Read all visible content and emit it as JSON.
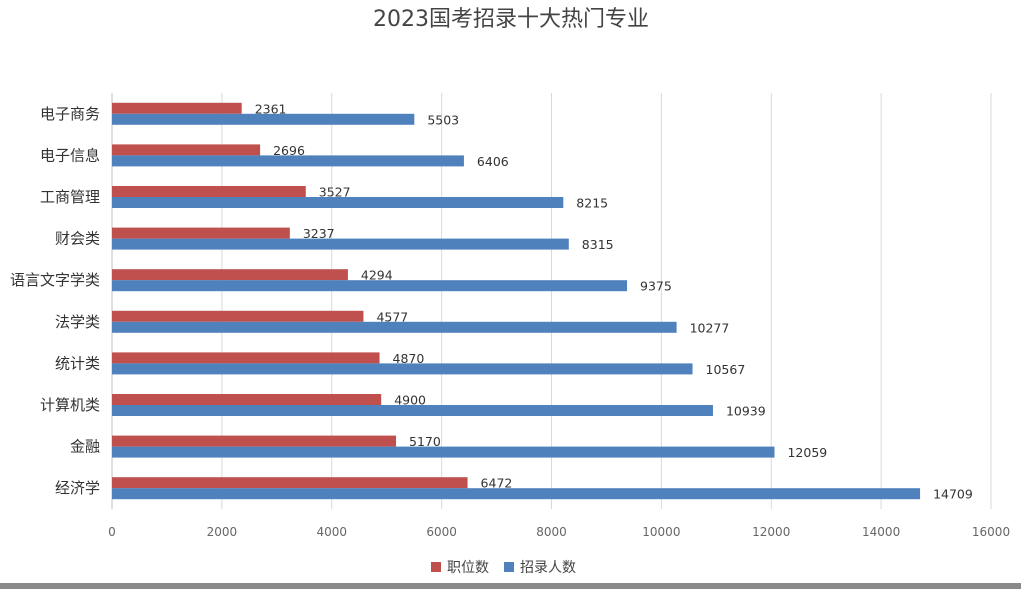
{
  "chart_data": {
    "type": "bar",
    "orientation": "horizontal",
    "title": "2023国考招录十大热门专业",
    "categories": [
      "电子商务",
      "电子信息",
      "工商管理",
      "财会类",
      "语言文字学类",
      "法学类",
      "统计类",
      "计算机类",
      "金融",
      "经济学"
    ],
    "series": [
      {
        "name": "职位数",
        "color": "#C0504D",
        "values": [
          2361,
          2696,
          3527,
          3237,
          4294,
          4577,
          4870,
          4900,
          5170,
          6472
        ]
      },
      {
        "name": "招录人数",
        "color": "#4F81BD",
        "values": [
          5503,
          6406,
          8215,
          8315,
          9375,
          10277,
          10567,
          10939,
          12059,
          14709
        ]
      }
    ],
    "xlim": [
      0,
      16000
    ],
    "xticks": [
      0,
      2000,
      4000,
      6000,
      8000,
      10000,
      12000,
      14000,
      16000
    ],
    "grid": true,
    "legend": "bottom"
  }
}
